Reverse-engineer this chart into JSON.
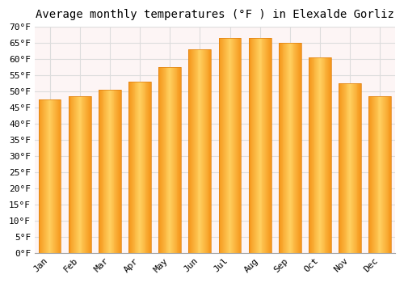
{
  "title": "Average monthly temperatures (°F ) in Elexalde Gorliz",
  "months": [
    "Jan",
    "Feb",
    "Mar",
    "Apr",
    "May",
    "Jun",
    "Jul",
    "Aug",
    "Sep",
    "Oct",
    "Nov",
    "Dec"
  ],
  "values": [
    47.5,
    48.5,
    50.5,
    53,
    57.5,
    63,
    66.5,
    66.5,
    65,
    60.5,
    52.5,
    48.5
  ],
  "bar_color_left": "#F5A623",
  "bar_color_center": "#FFD966",
  "bar_color_right": "#F5A623",
  "background_color": "#ffffff",
  "plot_bg_color": "#fdf5f5",
  "grid_color": "#dddddd",
  "ylim": [
    0,
    70
  ],
  "yticks": [
    0,
    5,
    10,
    15,
    20,
    25,
    30,
    35,
    40,
    45,
    50,
    55,
    60,
    65,
    70
  ],
  "title_fontsize": 10,
  "tick_fontsize": 8,
  "font_family": "monospace",
  "bar_width": 0.75
}
